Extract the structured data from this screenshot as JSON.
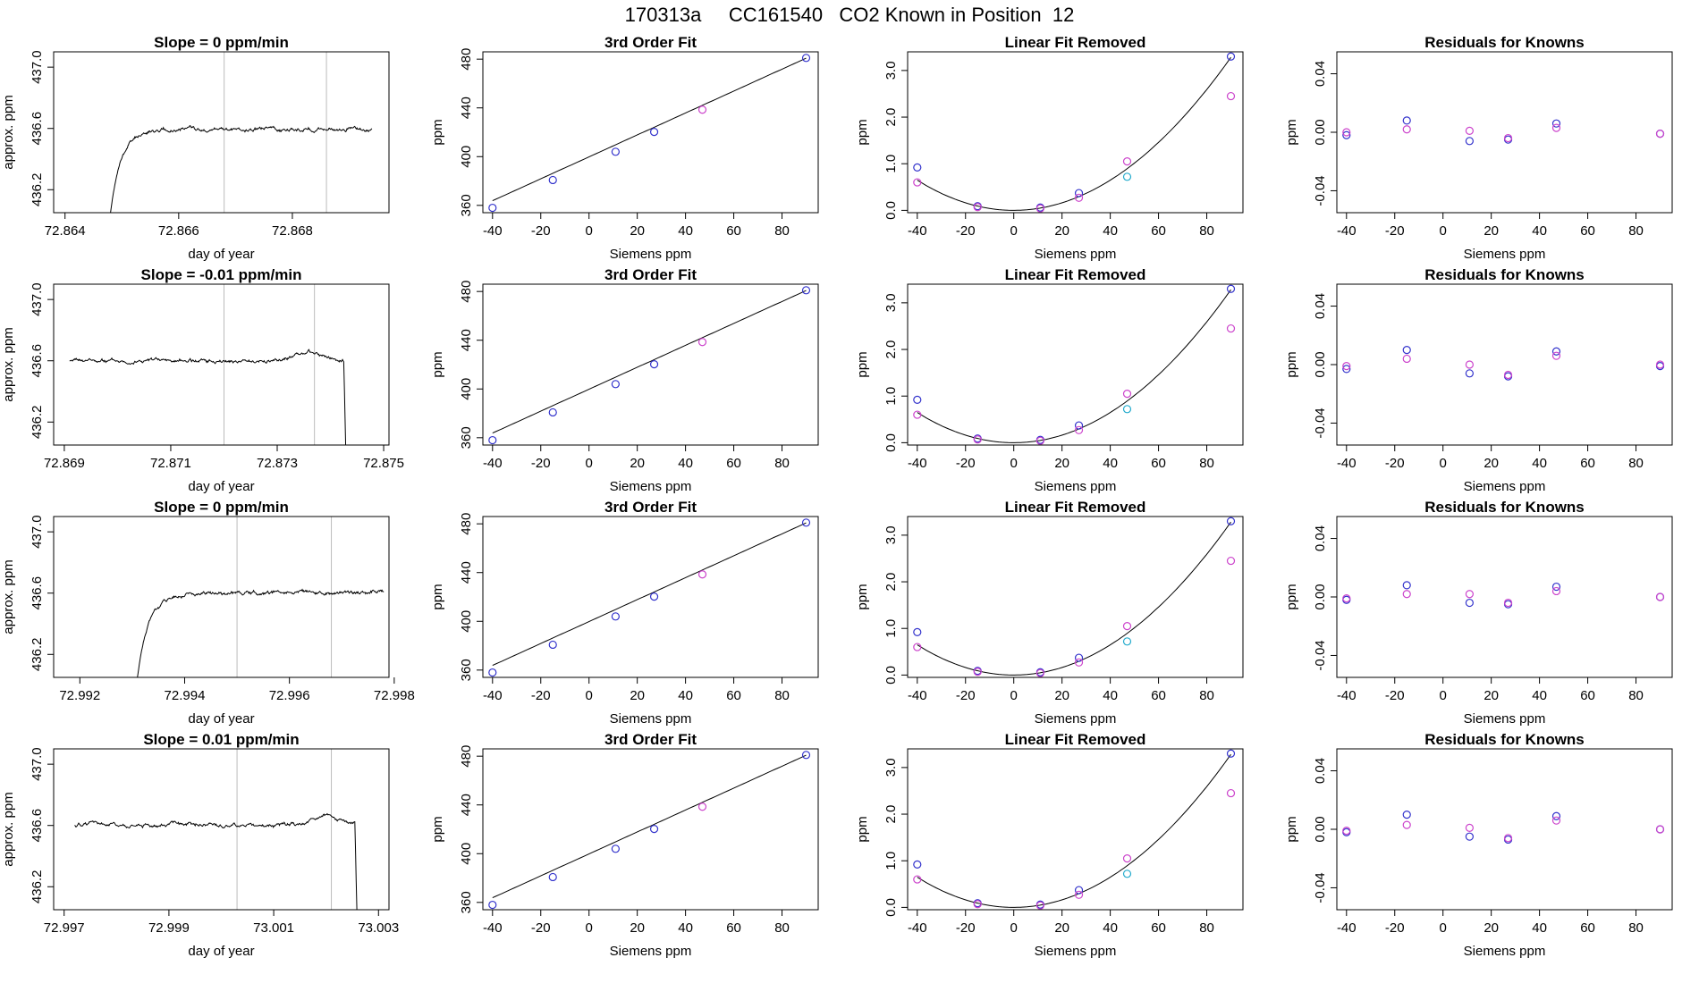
{
  "page": {
    "title": "170313a     CC161540   CO2 Known in Position  12"
  },
  "chart_data": [
    {
      "type": "line",
      "title": "Slope =  0  ppm/min",
      "xlabel": "day of year",
      "ylabel": "approx. ppm",
      "xlim": [
        72.8638,
        72.8697
      ],
      "ylim": [
        436.05,
        437.1
      ],
      "xticks": [
        72.864,
        72.866,
        72.868
      ],
      "xticklabels": [
        "72.864",
        "72.866",
        "72.868"
      ],
      "yticks": [
        436.2,
        436.6,
        437.0
      ],
      "yticklabels": [
        "436.2",
        "436.6",
        "437.0"
      ],
      "vlines": [
        72.8668,
        72.8686
      ],
      "trace": {
        "start": 72.8648,
        "end": 72.8694,
        "shape": "rise",
        "level": 436.595,
        "rise_end": 72.8656,
        "rise_from": 436.05,
        "noise": 0.009,
        "seed": 11
      },
      "grid": false,
      "legend": "none"
    },
    {
      "type": "scatter",
      "title": "3rd Order Fit",
      "xlabel": "Siemens ppm",
      "ylabel": "ppm",
      "xlim": [
        -44,
        95
      ],
      "ylim": [
        354,
        486
      ],
      "xticks": [
        -40,
        -20,
        0,
        20,
        40,
        60,
        80
      ],
      "xticklabels": [
        "-40",
        "-20",
        "0",
        "20",
        "40",
        "60",
        "80"
      ],
      "yticks": [
        360,
        400,
        440,
        480
      ],
      "yticklabels": [
        "360",
        "400",
        "440",
        "480"
      ],
      "fit": {
        "type": "linear",
        "a": 399.8,
        "b": 0.9
      },
      "series": [
        {
          "color": "#3333cc",
          "x": [
            -40,
            -15,
            11,
            27,
            90
          ],
          "y": [
            358,
            380.8,
            404,
            420.3,
            481
          ]
        },
        {
          "color": "#cc44cc",
          "x": [
            47
          ],
          "y": [
            438.5
          ]
        }
      ],
      "grid": false,
      "legend": "none"
    },
    {
      "type": "scatter",
      "title": "Linear Fit Removed",
      "xlabel": "Siemens ppm",
      "ylabel": "ppm",
      "xlim": [
        -44,
        95
      ],
      "ylim": [
        -0.05,
        3.4
      ],
      "xticks": [
        -40,
        -20,
        0,
        20,
        40,
        60,
        80
      ],
      "xticklabels": [
        "-40",
        "-20",
        "0",
        "20",
        "40",
        "60",
        "80"
      ],
      "yticks": [
        0,
        1,
        2,
        3
      ],
      "yticklabels": [
        "0.0",
        "1.0",
        "2.0",
        "3.0"
      ],
      "fit": {
        "type": "quad",
        "c": 0.000405
      },
      "series": [
        {
          "color": "#3333cc",
          "x": [
            -40,
            -15,
            11,
            27,
            90
          ],
          "y": [
            0.92,
            0.09,
            0.06,
            0.37,
            3.3
          ]
        },
        {
          "color": "#cc44cc",
          "x": [
            -40,
            -15,
            11,
            27,
            47,
            90
          ],
          "y": [
            0.6,
            0.07,
            0.04,
            0.27,
            1.05,
            2.45
          ]
        },
        {
          "color": "#22aacc",
          "x": [
            47
          ],
          "y": [
            0.72
          ]
        }
      ],
      "grid": false,
      "legend": "none"
    },
    {
      "type": "scatter",
      "title": "Residuals for Knowns",
      "xlabel": "Siemens ppm",
      "ylabel": "ppm",
      "xlim": [
        -44,
        95
      ],
      "ylim": [
        -0.055,
        0.055
      ],
      "xticks": [
        -40,
        -20,
        0,
        20,
        40,
        60,
        80
      ],
      "xticklabels": [
        "-40",
        "-20",
        "0",
        "20",
        "40",
        "60",
        "80"
      ],
      "yticks": [
        -0.04,
        0,
        0.04
      ],
      "yticklabels": [
        "-0.04",
        "0.00",
        "0.04"
      ],
      "series": [
        {
          "color": "#3333cc",
          "x": [
            -40,
            -15,
            11,
            27,
            47,
            90
          ],
          "y": [
            -0.002,
            0.008,
            -0.006,
            -0.005,
            0.006,
            -0.001
          ]
        },
        {
          "color": "#cc44cc",
          "x": [
            -40,
            -15,
            11,
            27,
            47,
            90
          ],
          "y": [
            0.0,
            0.002,
            0.001,
            -0.004,
            0.003,
            -0.001
          ]
        }
      ],
      "grid": false,
      "legend": "none"
    },
    {
      "type": "line",
      "title": "Slope =  -0.01  ppm/min",
      "xlabel": "day of year",
      "ylabel": "approx. ppm",
      "xlim": [
        72.8688,
        72.8751
      ],
      "ylim": [
        436.05,
        437.1
      ],
      "xticks": [
        72.869,
        72.871,
        72.873,
        72.875
      ],
      "xticklabels": [
        "72.869",
        "72.871",
        "72.873",
        "72.875"
      ],
      "yticks": [
        436.2,
        436.6,
        437.0
      ],
      "yticklabels": [
        "436.2",
        "436.6",
        "437.0"
      ],
      "vlines": [
        72.872,
        72.8737
      ],
      "trace": {
        "start": 72.8691,
        "end": 72.8743,
        "shape": "fall",
        "level": 436.6,
        "bump": 72.8736,
        "fall_at": 72.87425,
        "noise": 0.009,
        "seed": 23
      },
      "grid": false,
      "legend": "none"
    },
    {
      "type": "scatter",
      "title": "3rd Order Fit",
      "xlabel": "Siemens ppm",
      "ylabel": "ppm",
      "xlim": [
        -44,
        95
      ],
      "ylim": [
        354,
        486
      ],
      "xticks": [
        -40,
        -20,
        0,
        20,
        40,
        60,
        80
      ],
      "xticklabels": [
        "-40",
        "-20",
        "0",
        "20",
        "40",
        "60",
        "80"
      ],
      "yticks": [
        360,
        400,
        440,
        480
      ],
      "yticklabels": [
        "360",
        "400",
        "440",
        "480"
      ],
      "fit": {
        "type": "linear",
        "a": 399.8,
        "b": 0.9
      },
      "series": [
        {
          "color": "#3333cc",
          "x": [
            -40,
            -15,
            11,
            27,
            90
          ],
          "y": [
            358,
            380.8,
            404,
            420.3,
            481
          ]
        },
        {
          "color": "#cc44cc",
          "x": [
            47
          ],
          "y": [
            438.5
          ]
        }
      ],
      "grid": false,
      "legend": "none"
    },
    {
      "type": "scatter",
      "title": "Linear Fit Removed",
      "xlabel": "Siemens ppm",
      "ylabel": "ppm",
      "xlim": [
        -44,
        95
      ],
      "ylim": [
        -0.05,
        3.4
      ],
      "xticks": [
        -40,
        -20,
        0,
        20,
        40,
        60,
        80
      ],
      "xticklabels": [
        "-40",
        "-20",
        "0",
        "20",
        "40",
        "60",
        "80"
      ],
      "yticks": [
        0,
        1,
        2,
        3
      ],
      "yticklabels": [
        "0.0",
        "1.0",
        "2.0",
        "3.0"
      ],
      "fit": {
        "type": "quad",
        "c": 0.000405
      },
      "series": [
        {
          "color": "#3333cc",
          "x": [
            -40,
            -15,
            11,
            27,
            90
          ],
          "y": [
            0.92,
            0.09,
            0.06,
            0.37,
            3.3
          ]
        },
        {
          "color": "#cc44cc",
          "x": [
            -40,
            -15,
            11,
            27,
            47,
            90
          ],
          "y": [
            0.6,
            0.07,
            0.04,
            0.27,
            1.05,
            2.45
          ]
        },
        {
          "color": "#22aacc",
          "x": [
            47
          ],
          "y": [
            0.72
          ]
        }
      ],
      "grid": false,
      "legend": "none"
    },
    {
      "type": "scatter",
      "title": "Residuals for Knowns",
      "xlabel": "Siemens ppm",
      "ylabel": "ppm",
      "xlim": [
        -44,
        95
      ],
      "ylim": [
        -0.055,
        0.055
      ],
      "xticks": [
        -40,
        -20,
        0,
        20,
        40,
        60,
        80
      ],
      "xticklabels": [
        "-40",
        "-20",
        "0",
        "20",
        "40",
        "60",
        "80"
      ],
      "yticks": [
        -0.04,
        0,
        0.04
      ],
      "yticklabels": [
        "-0.04",
        "0.00",
        "0.04"
      ],
      "series": [
        {
          "color": "#3333cc",
          "x": [
            -40,
            -15,
            11,
            27,
            47,
            90
          ],
          "y": [
            -0.003,
            0.01,
            -0.006,
            -0.008,
            0.009,
            -0.001
          ]
        },
        {
          "color": "#cc44cc",
          "x": [
            -40,
            -15,
            11,
            27,
            47,
            90
          ],
          "y": [
            -0.001,
            0.004,
            0.0,
            -0.007,
            0.006,
            0.0
          ]
        }
      ],
      "grid": false,
      "legend": "none"
    },
    {
      "type": "line",
      "title": "Slope =  0  ppm/min",
      "xlabel": "day of year",
      "ylabel": "approx. ppm",
      "xlim": [
        72.9915,
        72.9979
      ],
      "ylim": [
        436.05,
        437.1
      ],
      "xticks": [
        72.992,
        72.994,
        72.996,
        72.998
      ],
      "xticklabels": [
        "72.992",
        "72.994",
        "72.996",
        "72.998"
      ],
      "yticks": [
        436.2,
        436.6,
        437.0
      ],
      "yticklabels": [
        "436.2",
        "436.6",
        "437.0"
      ],
      "vlines": [
        72.995,
        72.9968
      ],
      "trace": {
        "start": 72.9931,
        "end": 72.9978,
        "shape": "rise",
        "level": 436.6,
        "rise_end": 72.994,
        "rise_from": 436.05,
        "noise": 0.009,
        "seed": 37
      },
      "grid": false,
      "legend": "none"
    },
    {
      "type": "scatter",
      "title": "3rd Order Fit",
      "xlabel": "Siemens ppm",
      "ylabel": "ppm",
      "xlim": [
        -44,
        95
      ],
      "ylim": [
        354,
        486
      ],
      "xticks": [
        -40,
        -20,
        0,
        20,
        40,
        60,
        80
      ],
      "xticklabels": [
        "-40",
        "-20",
        "0",
        "20",
        "40",
        "60",
        "80"
      ],
      "yticks": [
        360,
        400,
        440,
        480
      ],
      "yticklabels": [
        "360",
        "400",
        "440",
        "480"
      ],
      "fit": {
        "type": "linear",
        "a": 399.8,
        "b": 0.9
      },
      "series": [
        {
          "color": "#3333cc",
          "x": [
            -40,
            -15,
            11,
            27,
            90
          ],
          "y": [
            358,
            380.8,
            404,
            420.3,
            481
          ]
        },
        {
          "color": "#cc44cc",
          "x": [
            47
          ],
          "y": [
            438.5
          ]
        }
      ],
      "grid": false,
      "legend": "none"
    },
    {
      "type": "scatter",
      "title": "Linear Fit Removed",
      "xlabel": "Siemens ppm",
      "ylabel": "ppm",
      "xlim": [
        -44,
        95
      ],
      "ylim": [
        -0.05,
        3.4
      ],
      "xticks": [
        -40,
        -20,
        0,
        20,
        40,
        60,
        80
      ],
      "xticklabels": [
        "-40",
        "-20",
        "0",
        "20",
        "40",
        "60",
        "80"
      ],
      "yticks": [
        0,
        1,
        2,
        3
      ],
      "yticklabels": [
        "0.0",
        "1.0",
        "2.0",
        "3.0"
      ],
      "fit": {
        "type": "quad",
        "c": 0.000405
      },
      "series": [
        {
          "color": "#3333cc",
          "x": [
            -40,
            -15,
            11,
            27,
            90
          ],
          "y": [
            0.92,
            0.09,
            0.06,
            0.37,
            3.3
          ]
        },
        {
          "color": "#cc44cc",
          "x": [
            -40,
            -15,
            11,
            27,
            47,
            90
          ],
          "y": [
            0.6,
            0.07,
            0.04,
            0.27,
            1.05,
            2.45
          ]
        },
        {
          "color": "#22aacc",
          "x": [
            47
          ],
          "y": [
            0.72
          ]
        }
      ],
      "grid": false,
      "legend": "none"
    },
    {
      "type": "scatter",
      "title": "Residuals for Knowns",
      "xlabel": "Siemens ppm",
      "ylabel": "ppm",
      "xlim": [
        -44,
        95
      ],
      "ylim": [
        -0.055,
        0.055
      ],
      "xticks": [
        -40,
        -20,
        0,
        20,
        40,
        60,
        80
      ],
      "xticklabels": [
        "-40",
        "-20",
        "0",
        "20",
        "40",
        "60",
        "80"
      ],
      "yticks": [
        -0.04,
        0,
        0.04
      ],
      "yticklabels": [
        "-0.04",
        "0.00",
        "0.04"
      ],
      "series": [
        {
          "color": "#3333cc",
          "x": [
            -40,
            -15,
            11,
            27,
            47,
            90
          ],
          "y": [
            -0.002,
            0.008,
            -0.004,
            -0.005,
            0.007,
            0.0
          ]
        },
        {
          "color": "#cc44cc",
          "x": [
            -40,
            -15,
            11,
            27,
            47,
            90
          ],
          "y": [
            -0.001,
            0.002,
            0.002,
            -0.004,
            0.004,
            0.0
          ]
        }
      ],
      "grid": false,
      "legend": "none"
    },
    {
      "type": "line",
      "title": "Slope =  0.01  ppm/min",
      "xlabel": "day of year",
      "ylabel": "approx. ppm",
      "xlim": [
        72.9968,
        73.0032
      ],
      "ylim": [
        436.05,
        437.1
      ],
      "xticks": [
        72.997,
        72.999,
        73.001,
        73.003
      ],
      "xticklabels": [
        "72.997",
        "72.999",
        "73.001",
        "73.003"
      ],
      "yticks": [
        436.2,
        436.6,
        437.0
      ],
      "yticklabels": [
        "436.2",
        "436.6",
        "437.0"
      ],
      "vlines": [
        73.0003,
        73.0021
      ],
      "trace": {
        "start": 72.9972,
        "end": 73.0026,
        "shape": "fall",
        "level": 436.605,
        "bump": 73.002,
        "fall_at": 73.00255,
        "noise": 0.009,
        "seed": 51
      },
      "grid": false,
      "legend": "none"
    },
    {
      "type": "scatter",
      "title": "3rd Order Fit",
      "xlabel": "Siemens ppm",
      "ylabel": "ppm",
      "xlim": [
        -44,
        95
      ],
      "ylim": [
        354,
        486
      ],
      "xticks": [
        -40,
        -20,
        0,
        20,
        40,
        60,
        80
      ],
      "xticklabels": [
        "-40",
        "-20",
        "0",
        "20",
        "40",
        "60",
        "80"
      ],
      "yticks": [
        360,
        400,
        440,
        480
      ],
      "yticklabels": [
        "360",
        "400",
        "440",
        "480"
      ],
      "fit": {
        "type": "linear",
        "a": 399.8,
        "b": 0.9
      },
      "series": [
        {
          "color": "#3333cc",
          "x": [
            -40,
            -15,
            11,
            27,
            90
          ],
          "y": [
            358,
            380.8,
            404,
            420.3,
            481
          ]
        },
        {
          "color": "#cc44cc",
          "x": [
            47
          ],
          "y": [
            438.5
          ]
        }
      ],
      "grid": false,
      "legend": "none"
    },
    {
      "type": "scatter",
      "title": "Linear Fit Removed",
      "xlabel": "Siemens ppm",
      "ylabel": "ppm",
      "xlim": [
        -44,
        95
      ],
      "ylim": [
        -0.05,
        3.4
      ],
      "xticks": [
        -40,
        -20,
        0,
        20,
        40,
        60,
        80
      ],
      "xticklabels": [
        "-40",
        "-20",
        "0",
        "20",
        "40",
        "60",
        "80"
      ],
      "yticks": [
        0,
        1,
        2,
        3
      ],
      "yticklabels": [
        "0.0",
        "1.0",
        "2.0",
        "3.0"
      ],
      "fit": {
        "type": "quad",
        "c": 0.000405
      },
      "series": [
        {
          "color": "#3333cc",
          "x": [
            -40,
            -15,
            11,
            27,
            90
          ],
          "y": [
            0.92,
            0.09,
            0.06,
            0.37,
            3.3
          ]
        },
        {
          "color": "#cc44cc",
          "x": [
            -40,
            -15,
            11,
            27,
            47,
            90
          ],
          "y": [
            0.6,
            0.07,
            0.04,
            0.27,
            1.05,
            2.45
          ]
        },
        {
          "color": "#22aacc",
          "x": [
            47
          ],
          "y": [
            0.72
          ]
        }
      ],
      "grid": false,
      "legend": "none"
    },
    {
      "type": "scatter",
      "title": "Residuals for Knowns",
      "xlabel": "Siemens ppm",
      "ylabel": "ppm",
      "xlim": [
        -44,
        95
      ],
      "ylim": [
        -0.055,
        0.055
      ],
      "xticks": [
        -40,
        -20,
        0,
        20,
        40,
        60,
        80
      ],
      "xticklabels": [
        "-40",
        "-20",
        "0",
        "20",
        "40",
        "60",
        "80"
      ],
      "yticks": [
        -0.04,
        0,
        0.04
      ],
      "yticklabels": [
        "-0.04",
        "0.00",
        "0.04"
      ],
      "series": [
        {
          "color": "#3333cc",
          "x": [
            -40,
            -15,
            11,
            27,
            47,
            90
          ],
          "y": [
            -0.002,
            0.01,
            -0.005,
            -0.007,
            0.009,
            0.0
          ]
        },
        {
          "color": "#cc44cc",
          "x": [
            -40,
            -15,
            11,
            27,
            47,
            90
          ],
          "y": [
            -0.001,
            0.003,
            0.001,
            -0.006,
            0.006,
            0.0
          ]
        }
      ],
      "grid": false,
      "legend": "none"
    }
  ]
}
